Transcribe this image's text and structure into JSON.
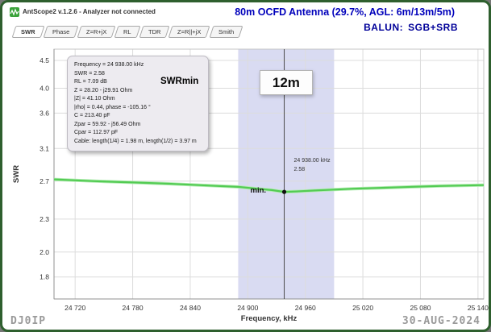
{
  "window": {
    "app_title": "AntScope2 v.1.2.6 - Analyzer not connected",
    "header_title": "80m OCFD Antenna (29.7%, AGL: 6m/13m/5m)",
    "balun_label": "BALUN:",
    "balun_value": "SGB+SRB"
  },
  "tabs": [
    "SWR",
    "Phase",
    "Z=R+jX",
    "RL",
    "TDR",
    "Z=R||+jX",
    "Smith"
  ],
  "info_box": {
    "lines": [
      "Frequency = 24 938.00 kHz",
      "SWR = 2.58",
      "RL = 7.09 dB",
      "Z = 28.20 - j29.91 Ohm",
      "|Z| = 41.10 Ohm",
      "|rho| = 0.44, phase = -105.16 °",
      "C = 213.40 pF",
      "Zpar = 59.92 - j56.49 Ohm",
      "Cpar = 112.97 pF",
      "Cable: length(1/4) = 1.98 m, length(1/2) = 3.97 m"
    ]
  },
  "annotations": {
    "swrmin_label": "SWRmin",
    "band_label": "12m",
    "cursor_freq": "24 938.00 kHz",
    "cursor_swr": "2.58",
    "min_label": "min."
  },
  "footer": {
    "callsign": "DJ0IP",
    "date": "30-AUG-2024"
  },
  "colors": {
    "accent_blue": "#0000bb",
    "curve_green": "#53cb53",
    "curve_glow": "#b2ecb2",
    "band_fill": "#d9dbf2",
    "grid": "#dcdcdc",
    "axis": "#909090"
  },
  "chart_data": {
    "type": "line",
    "title": "",
    "xlabel": "Frequency, kHz",
    "ylabel": "SWR",
    "x_ticks": [
      24720,
      24780,
      24840,
      24900,
      24960,
      25020,
      25080,
      25140
    ],
    "x_tick_labels": [
      "24 720",
      "24 780",
      "24 840",
      "24 900",
      "24 960",
      "25 020",
      "25 080",
      "25 140"
    ],
    "y_ticks": [
      4.5,
      4.0,
      3.6,
      3.1,
      2.7,
      2.3,
      2.0,
      1.8
    ],
    "y_tick_labels": [
      "4.5",
      "4.0",
      "3.6",
      "3.1",
      "2.7",
      "2.3",
      "2.0",
      "1.8"
    ],
    "xlim": [
      24698,
      25146
    ],
    "ylim": [
      1.64,
      4.72
    ],
    "y_scale": "log",
    "grid": true,
    "band": {
      "start": 24890,
      "end": 24990,
      "label": "12m"
    },
    "cursor": {
      "freq_khz": 24938,
      "swr": 2.58
    },
    "series": [
      {
        "name": "SWR",
        "x": [
          24698,
          24740,
          24780,
          24820,
          24860,
          24890,
          24910,
          24925,
          24938,
          24950,
          24970,
          24990,
          25010,
          25040,
          25070,
          25100,
          25146
        ],
        "y": [
          2.72,
          2.7,
          2.685,
          2.67,
          2.65,
          2.635,
          2.615,
          2.6,
          2.58,
          2.585,
          2.595,
          2.605,
          2.615,
          2.625,
          2.635,
          2.645,
          2.655
        ]
      }
    ]
  }
}
